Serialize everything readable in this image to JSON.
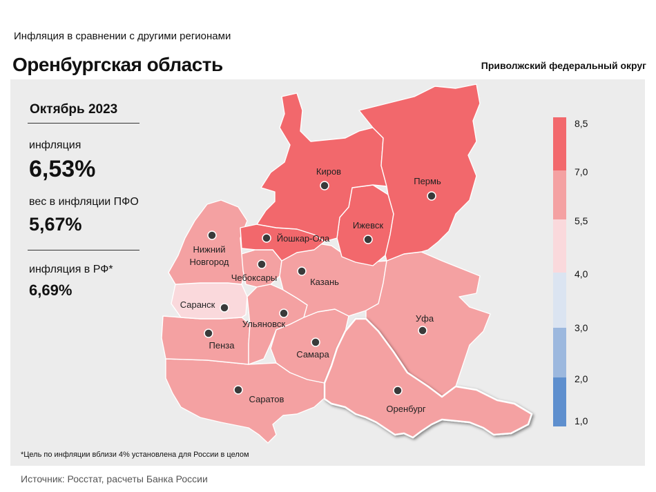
{
  "header": {
    "subtitle": "Инфляция  в сравнении  с другими  регионами",
    "title": "Оренбургская область",
    "district": "Приволжский федеральный округ"
  },
  "stats": {
    "period": "Октябрь 2023",
    "inflation_label": "инфляция",
    "inflation_value": "6,53%",
    "weight_label": "вес в инфляции  ПФО",
    "weight_value": "5,67%",
    "rf_label": "инфляция  в РФ*",
    "rf_value": "6,69%"
  },
  "footnote": "*Цель по инфляции вблизи 4% установлена для России в целом",
  "source": "Источник: Росстат, расчеты Банка России",
  "legend": {
    "ticks": [
      "8,5",
      "7,0",
      "5,5",
      "4,0",
      "3,0",
      "2,0",
      "1,0"
    ],
    "colors": [
      "#f2686c",
      "#f4a1a2",
      "#fad9dc",
      "#dbe4f1",
      "#9cb8de",
      "#5e8fce"
    ]
  },
  "regions": [
    {
      "name": "Киров",
      "inflation_band": "7,0–8,5",
      "color": "#f2686c"
    },
    {
      "name": "Пермь",
      "inflation_band": "7,0–8,5",
      "color": "#f2686c"
    },
    {
      "name": "Ижевск",
      "inflation_band": "7,0–8,5",
      "color": "#f2686c"
    },
    {
      "name": "Йошкар-Ола",
      "inflation_band": "7,0–8,5",
      "color": "#f2686c"
    },
    {
      "name": "Нижний Новгород",
      "inflation_band": "5,5–7,0",
      "color": "#f4a1a2"
    },
    {
      "name": "Чебоксары",
      "inflation_band": "5,5–7,0",
      "color": "#f4a1a2"
    },
    {
      "name": "Казань",
      "inflation_band": "5,5–7,0",
      "color": "#f4a1a2"
    },
    {
      "name": "Саранск",
      "inflation_band": "4,0–5,5",
      "color": "#fad9dc"
    },
    {
      "name": "Ульяновск",
      "inflation_band": "5,5–7,0",
      "color": "#f4a1a2"
    },
    {
      "name": "Пенза",
      "inflation_band": "5,5–7,0",
      "color": "#f4a1a2"
    },
    {
      "name": "Самара",
      "inflation_band": "5,5–7,0",
      "color": "#f4a1a2"
    },
    {
      "name": "Саратов",
      "inflation_band": "5,5–7,0",
      "color": "#f4a1a2"
    },
    {
      "name": "Уфа",
      "inflation_band": "5,5–7,0",
      "color": "#f4a1a2"
    },
    {
      "name": "Оренбург",
      "inflation_band": "5,5–7,0",
      "color": "#f4a1a2"
    }
  ],
  "highlighted_region": "Оренбург"
}
